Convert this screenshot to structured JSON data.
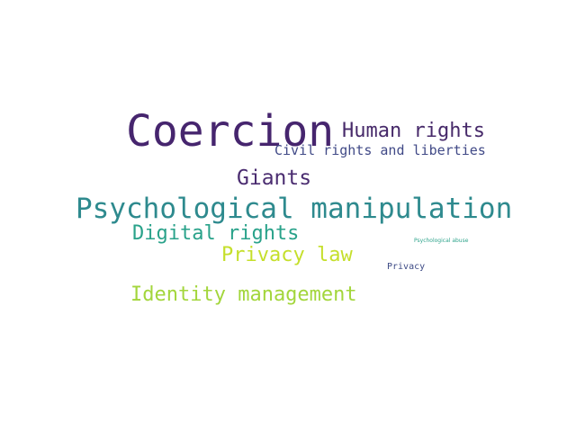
{
  "words": {
    "coercion": {
      "text": "Coercion",
      "color": "#46256e"
    },
    "human_rights": {
      "text": "Human rights",
      "color": "#472a6a"
    },
    "civil_rights": {
      "text": "Civil rights and liberties",
      "color": "#414a87"
    },
    "giants": {
      "text": "Giants",
      "color": "#4a2c70"
    },
    "psychological_manipulation": {
      "text": "Psychological manipulation",
      "color": "#2e8a8e"
    },
    "digital_rights": {
      "text": "Digital rights",
      "color": "#29a28a"
    },
    "privacy_law": {
      "text": "Privacy law",
      "color": "#c5df2b"
    },
    "psychological_abuse": {
      "text": "Psychological abuse",
      "color": "#2fa48c"
    },
    "privacy": {
      "text": "Privacy",
      "color": "#3d4a85"
    },
    "identity_management": {
      "text": "Identity management",
      "color": "#a3d63c"
    }
  }
}
